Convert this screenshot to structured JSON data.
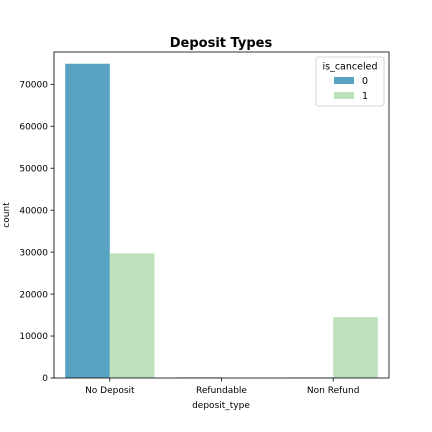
{
  "chart_data": {
    "type": "bar",
    "title": "Deposit Types",
    "xlabel": "deposit_type",
    "ylabel": "count",
    "categories": [
      "No Deposit",
      "Refundable",
      "Non Refund"
    ],
    "series": [
      {
        "name": "0",
        "values": [
          74900,
          140,
          90
        ]
      },
      {
        "name": "1",
        "values": [
          29700,
          30,
          14500
        ]
      }
    ],
    "ylim": [
      0,
      77700
    ],
    "yticks": [
      0,
      10000,
      20000,
      30000,
      40000,
      50000,
      60000,
      70000
    ],
    "legend": {
      "title": "is_canceled",
      "placement": "top-right"
    },
    "grid": false,
    "colors": {
      "0": "#58a3c3",
      "1": "#bde1bd"
    }
  }
}
